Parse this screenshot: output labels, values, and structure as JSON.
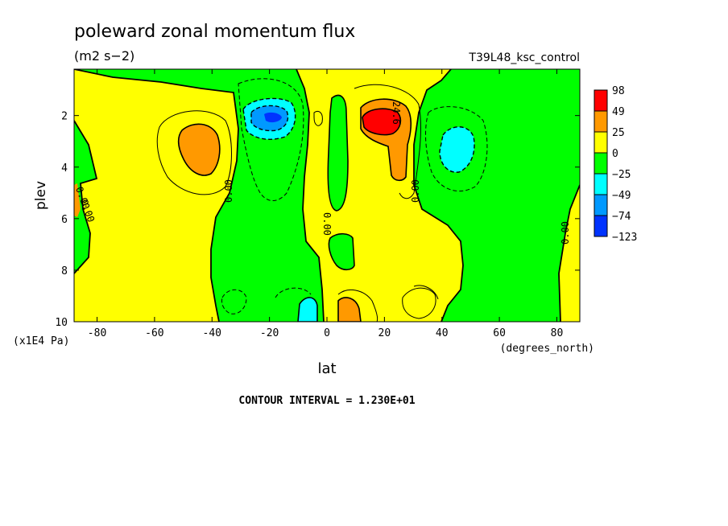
{
  "chart_data": {
    "type": "contour",
    "title": "poleward zonal momentum flux",
    "units": "(m2 s−2)",
    "dataset": "T39L48_ksc_control",
    "xlabel": "lat",
    "x_units": "(degrees_north)",
    "ylabel": "plev",
    "y_units": "(x1E4 Pa)",
    "xlim": [
      -88,
      88
    ],
    "ylim": [
      10,
      0.2
    ],
    "y_axis_inverted": true,
    "x_ticks": [
      -80,
      -60,
      -40,
      -20,
      0,
      20,
      40,
      60,
      80
    ],
    "x_tick_labels": [
      "-80",
      "-60",
      "-40",
      "-20",
      "0",
      "20",
      "40",
      "60",
      "80"
    ],
    "y_ticks": [
      2,
      4,
      6,
      8,
      10
    ],
    "y_tick_labels": [
      "2",
      "4",
      "6",
      "8",
      "10"
    ],
    "contour_interval_label": "CONTOUR INTERVAL = 1.230E+01",
    "contour_labels": [
      "0.00",
      "0.00",
      "0.00",
      "0.00",
      "0.00",
      "0.00",
      "24.6"
    ],
    "colorbar": {
      "levels": [
        "98",
        "49",
        "25",
        "0",
        "−25",
        "−49",
        "−74",
        "−123"
      ],
      "colors": [
        "#ff0000",
        "#ff9900",
        "#ffff00",
        "#00ff00",
        "#00ffff",
        "#0099ff",
        "#0033ff"
      ]
    },
    "features": [
      {
        "lat": -45,
        "plev": 3.0,
        "sign": "positive",
        "peak": 25
      },
      {
        "lat": -19,
        "plev": 2.0,
        "sign": "negative",
        "peak": -74
      },
      {
        "lat": 19,
        "plev": 2.0,
        "sign": "positive",
        "peak": 49
      },
      {
        "lat": 22,
        "plev": 4.0,
        "sign": "positive",
        "peak": 25
      },
      {
        "lat": 45,
        "plev": 3.0,
        "sign": "negative",
        "peak": -25
      },
      {
        "lat": -7,
        "plev": 9.6,
        "sign": "negative",
        "peak": -25
      },
      {
        "lat": 7,
        "plev": 9.6,
        "sign": "positive",
        "peak": 25
      }
    ]
  }
}
